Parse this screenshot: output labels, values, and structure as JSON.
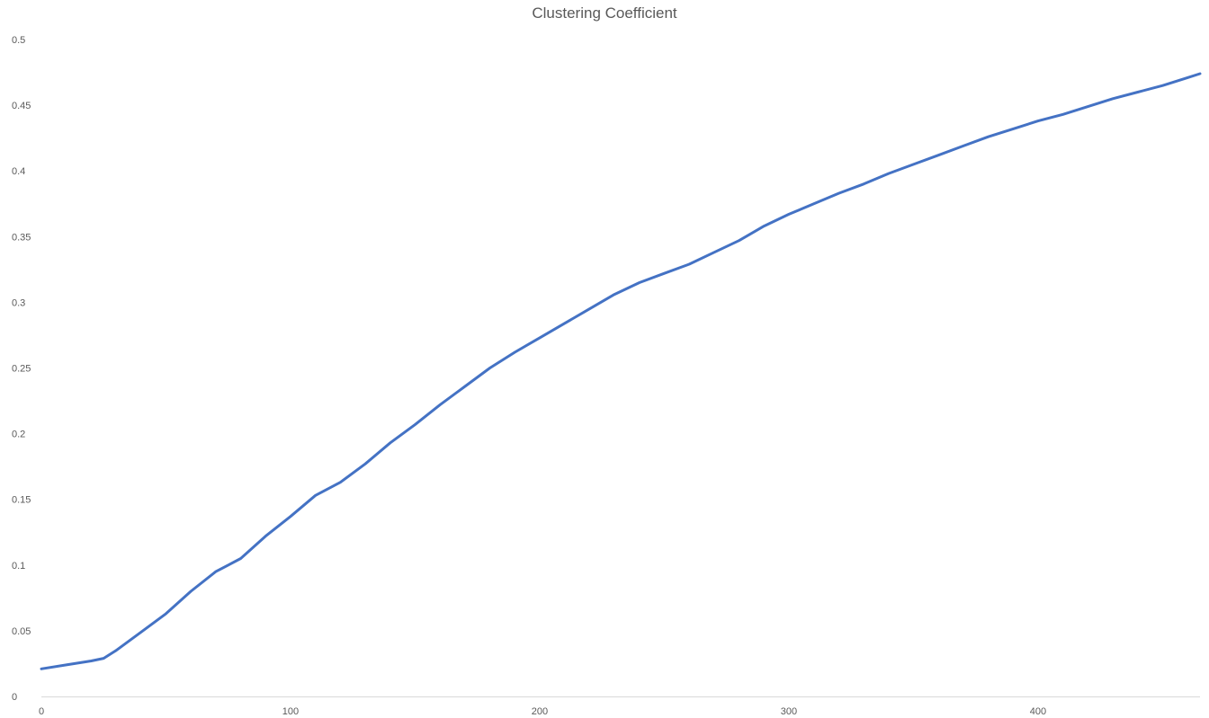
{
  "chart_data": {
    "type": "line",
    "title": "Clustering Coefficient",
    "xlabel": "",
    "ylabel": "",
    "xlim": [
      0,
      465
    ],
    "ylim": [
      0,
      0.5
    ],
    "grid": false,
    "legend": "none",
    "x_ticks": [
      "0",
      "100",
      "200",
      "300",
      "400"
    ],
    "y_ticks": [
      "0",
      "0.05",
      "0.1",
      "0.15",
      "0.2",
      "0.25",
      "0.3",
      "0.35",
      "0.4",
      "0.45",
      "0.5"
    ],
    "colors": {
      "series": "#4472c4",
      "axis": "#d9d9d9",
      "text": "#595959"
    },
    "series": [
      {
        "x": [
          0,
          10,
          20,
          25,
          30,
          40,
          50,
          60,
          70,
          80,
          90,
          100,
          110,
          120,
          130,
          140,
          150,
          160,
          170,
          180,
          190,
          200,
          210,
          220,
          230,
          240,
          250,
          260,
          270,
          280,
          290,
          300,
          310,
          320,
          330,
          340,
          350,
          360,
          370,
          380,
          390,
          400,
          410,
          420,
          430,
          440,
          450,
          460,
          465
        ],
        "y": [
          0.021,
          0.024,
          0.027,
          0.029,
          0.035,
          0.049,
          0.063,
          0.08,
          0.095,
          0.105,
          0.122,
          0.137,
          0.153,
          0.163,
          0.177,
          0.193,
          0.207,
          0.222,
          0.236,
          0.25,
          0.262,
          0.273,
          0.284,
          0.295,
          0.306,
          0.315,
          0.322,
          0.329,
          0.338,
          0.347,
          0.358,
          0.367,
          0.375,
          0.383,
          0.39,
          0.398,
          0.405,
          0.412,
          0.419,
          0.426,
          0.432,
          0.438,
          0.443,
          0.449,
          0.455,
          0.46,
          0.465,
          0.471,
          0.474
        ]
      }
    ]
  }
}
